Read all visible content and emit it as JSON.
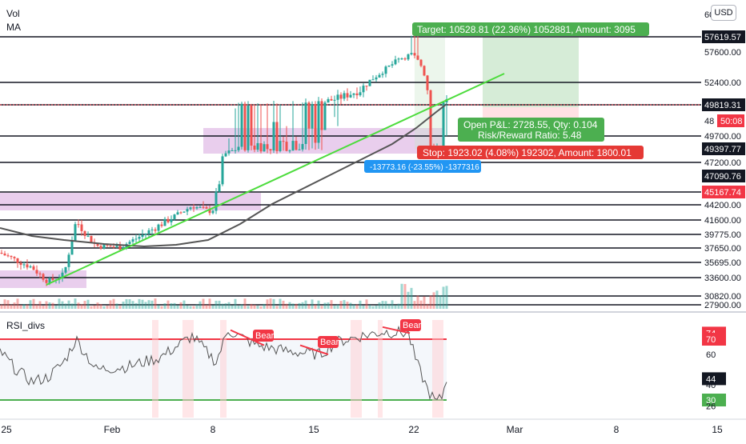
{
  "chart_data": {
    "type": "candlestick",
    "indicators": {
      "vol": "Vol",
      "ma": "MA"
    },
    "currency": "USD",
    "price_axis": {
      "labels": [
        "57619.57",
        "57600.00",
        "52400.00",
        "49819.31",
        "49700.00",
        "49397.77",
        "47200.00",
        "47090.76",
        "45167.74",
        "44200.00",
        "41600.00",
        "39775.00",
        "37650.00",
        "35695.00",
        "33600.00",
        "30820.00",
        "27900.00"
      ],
      "partial": [
        "60",
        "48"
      ],
      "countdown": "50:08"
    },
    "horizontal_levels": [
      57619.57,
      52400,
      49819.31,
      49700,
      47200,
      45167.74,
      44200,
      41600,
      39775,
      37650,
      35695,
      33600,
      30820,
      27900
    ],
    "highlight_labels": {
      "57619.57": "#131722",
      "49819.31": "#131722",
      "49397.77": "#131722",
      "47090.76": "#131722",
      "45167.74": "#f23645"
    },
    "position": {
      "target": "Target: 10528.81 (22.36%) 1052881, Amount: 3095",
      "pnl": "Open P&L: 2728.55, Qty: 0.104",
      "rr": "Risk/Reward Ratio: 5.48",
      "stop": "Stop: 1923.02 (4.08%) 192302, Amount: 1800.01"
    },
    "measure": "-13773.16 (-23.55%) -1377316",
    "x_axis": [
      "25",
      "Feb",
      "8",
      "15",
      "22",
      "Mar",
      "8",
      "15"
    ],
    "rsi": {
      "title": "RSI_divs",
      "levels": [
        74,
        70,
        60,
        44,
        40,
        30,
        26
      ],
      "level_labels": [
        "74",
        "70",
        "60",
        "44",
        "40",
        "30",
        "26"
      ],
      "upper_band": 70,
      "lower_band": 30,
      "current": 44,
      "bear_labels": [
        "Bear",
        "Bear",
        "Bear"
      ]
    },
    "colors": {
      "up": "#26a69a",
      "down": "#ef5350",
      "target": "#4caf50",
      "stop": "#f23645",
      "measure": "#2196f3",
      "trend": "#4cdc3c",
      "ma": "#555555",
      "zone": "#e1bee7"
    }
  }
}
